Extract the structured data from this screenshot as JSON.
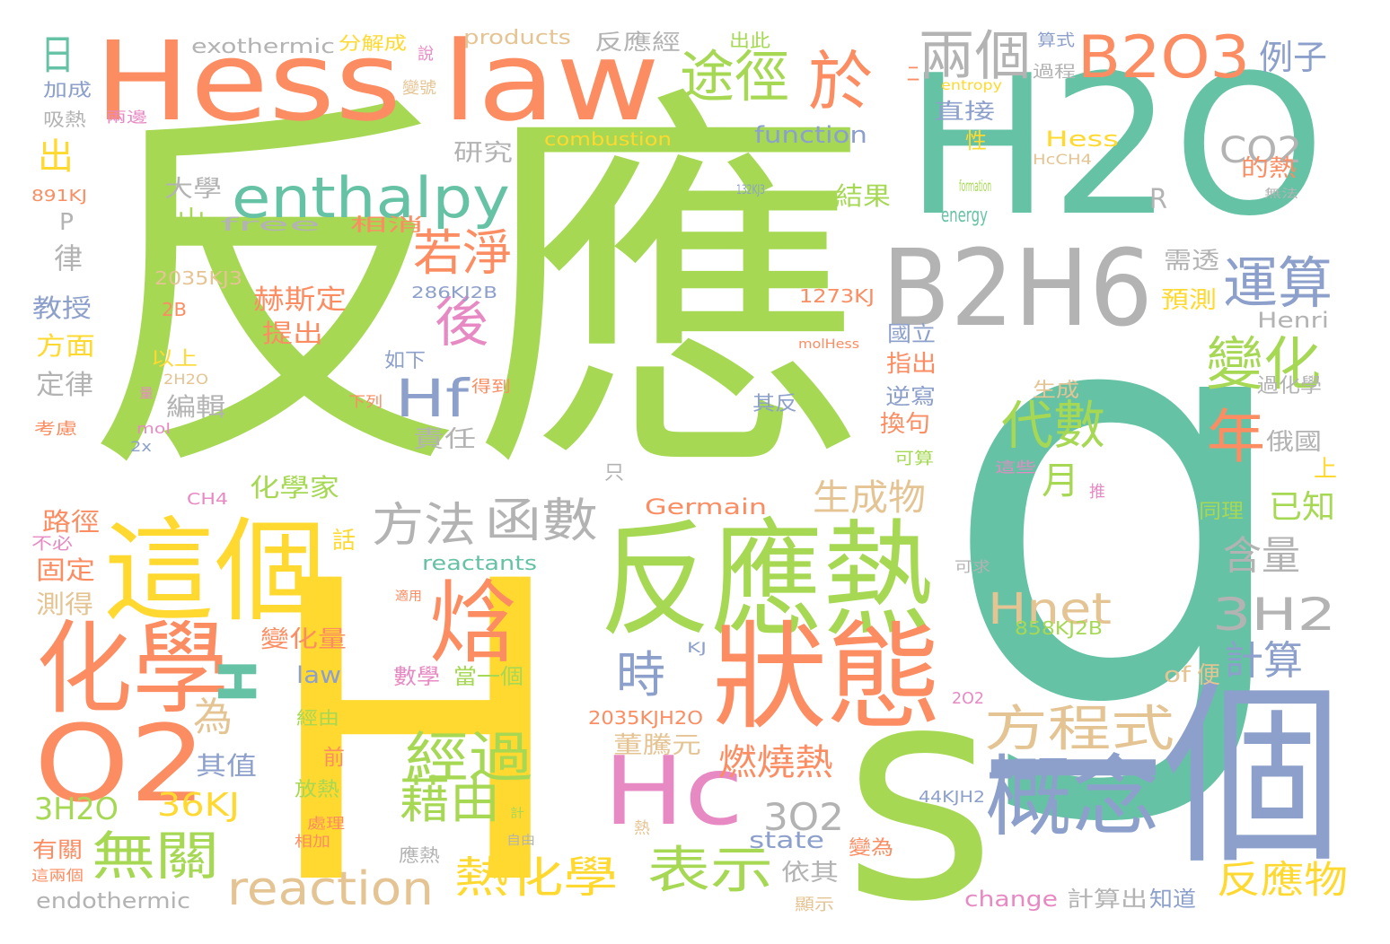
{
  "palette": {
    "green": "#a6d854",
    "teal": "#66c2a5",
    "orange": "#fc8d62",
    "yellow": "#ffd92f",
    "blue": "#8da0cb",
    "pink": "#e78ac3",
    "tan": "#e5c494",
    "gray": "#b3b3b3"
  },
  "words": [
    {
      "text": "反應",
      "color": "green"
    },
    {
      "text": "g",
      "color": "teal"
    },
    {
      "text": "H2O",
      "color": "teal"
    },
    {
      "text": "H",
      "color": "yellow"
    },
    {
      "text": "s",
      "color": "green"
    },
    {
      "text": "Hess law",
      "color": "orange"
    },
    {
      "text": "一個",
      "color": "blue"
    },
    {
      "text": "反應熱",
      "color": "green"
    },
    {
      "text": "狀態",
      "color": "orange"
    },
    {
      "text": "這個",
      "color": "yellow"
    },
    {
      "text": "化學",
      "color": "orange"
    },
    {
      "text": "O2",
      "color": "orange"
    },
    {
      "text": "B2H6",
      "color": "gray"
    },
    {
      "text": "Hc",
      "color": "pink"
    },
    {
      "text": "概念",
      "color": "blue"
    },
    {
      "text": "焓",
      "color": "orange"
    },
    {
      "text": "B2O3",
      "color": "orange"
    },
    {
      "text": "H",
      "color": "teal"
    },
    {
      "text": "enthalpy",
      "color": "teal"
    },
    {
      "text": "於",
      "color": "orange"
    },
    {
      "text": "兩個",
      "color": "gray"
    },
    {
      "text": "途徑",
      "color": "green"
    },
    {
      "text": "運算",
      "color": "blue"
    },
    {
      "text": "變化",
      "color": "green"
    },
    {
      "text": "年",
      "color": "orange"
    },
    {
      "text": "後",
      "color": "pink"
    },
    {
      "text": "Hf",
      "color": "blue"
    },
    {
      "text": "若淨",
      "color": "orange"
    },
    {
      "text": "代數",
      "color": "green"
    },
    {
      "text": "月",
      "color": "green"
    },
    {
      "text": "方法",
      "color": "gray"
    },
    {
      "text": "函數",
      "color": "gray"
    },
    {
      "text": "時",
      "color": "blue"
    },
    {
      "text": "為",
      "color": "tan"
    },
    {
      "text": "經過",
      "color": "green"
    },
    {
      "text": "方程式",
      "color": "tan"
    },
    {
      "text": "Hnet",
      "color": "tan"
    },
    {
      "text": "3H2",
      "color": "gray"
    },
    {
      "text": "含量",
      "color": "gray"
    },
    {
      "text": "計算",
      "color": "blue"
    },
    {
      "text": "藉由",
      "color": "green"
    },
    {
      "text": "表示",
      "color": "green"
    },
    {
      "text": "熱化學",
      "color": "yellow"
    },
    {
      "text": "無關",
      "color": "green"
    },
    {
      "text": "reaction",
      "color": "tan"
    },
    {
      "text": "反應物",
      "color": "yellow"
    },
    {
      "text": "生成物",
      "color": "tan"
    },
    {
      "text": "燃燒熱",
      "color": "orange"
    },
    {
      "text": "3O2",
      "color": "gray"
    },
    {
      "text": "36KJ",
      "color": "yellow"
    },
    {
      "text": "3H2O",
      "color": "green"
    },
    {
      "text": "CO2",
      "color": "gray"
    },
    {
      "text": "例子",
      "color": "blue"
    },
    {
      "text": "日",
      "color": "teal"
    },
    {
      "text": "出",
      "color": "yellow"
    },
    {
      "text": "已知",
      "color": "green"
    },
    {
      "text": "R",
      "color": "gray"
    },
    {
      "text": "P",
      "color": "gray"
    },
    {
      "text": "exothermic",
      "color": "gray"
    },
    {
      "text": "分解成",
      "color": "yellow"
    },
    {
      "text": "products",
      "color": "tan"
    },
    {
      "text": "反應經",
      "color": "gray"
    },
    {
      "text": "出此",
      "color": "green"
    },
    {
      "text": "算式",
      "color": "blue"
    },
    {
      "text": "加成",
      "color": "blue"
    },
    {
      "text": "說",
      "color": "pink"
    },
    {
      "text": "變號",
      "color": "tan"
    },
    {
      "text": "二",
      "color": "orange"
    },
    {
      "text": "過程",
      "color": "gray"
    },
    {
      "text": "entropy",
      "color": "yellow"
    },
    {
      "text": "吸熱",
      "color": "gray"
    },
    {
      "text": "兩邊",
      "color": "pink"
    },
    {
      "text": "直接",
      "color": "blue"
    },
    {
      "text": "性",
      "color": "yellow"
    },
    {
      "text": "combustion",
      "color": "yellow"
    },
    {
      "text": "function",
      "color": "blue"
    },
    {
      "text": "Hess",
      "color": "yellow"
    },
    {
      "text": "HcCH4",
      "color": "tan"
    },
    {
      "text": "研究",
      "color": "gray"
    },
    {
      "text": "大學",
      "color": "gray"
    },
    {
      "text": "891KJ",
      "color": "orange"
    },
    {
      "text": "的熱",
      "color": "orange"
    },
    {
      "text": "formation",
      "color": "green"
    },
    {
      "text": "132KJ3",
      "color": "blue"
    },
    {
      "text": "無法",
      "color": "gray"
    },
    {
      "text": "中山",
      "color": "green"
    },
    {
      "text": "free",
      "color": "gray"
    },
    {
      "text": "相消",
      "color": "orange"
    },
    {
      "text": "結果",
      "color": "green"
    },
    {
      "text": "energy",
      "color": "teal"
    },
    {
      "text": "律",
      "color": "gray"
    },
    {
      "text": "2035KJ3",
      "color": "tan"
    },
    {
      "text": "286KJ2B",
      "color": "blue"
    },
    {
      "text": "1273KJ",
      "color": "orange"
    },
    {
      "text": "需透",
      "color": "gray"
    },
    {
      "text": "預測",
      "color": "yellow"
    },
    {
      "text": "Henri",
      "color": "gray"
    },
    {
      "text": "教授",
      "color": "blue"
    },
    {
      "text": "赫斯定",
      "color": "orange"
    },
    {
      "text": "提出",
      "color": "orange"
    },
    {
      "text": "2B",
      "color": "orange"
    },
    {
      "text": "方面",
      "color": "yellow"
    },
    {
      "text": "以上",
      "color": "yellow"
    },
    {
      "text": "molHess",
      "color": "orange"
    },
    {
      "text": "國立",
      "color": "blue"
    },
    {
      "text": "指出",
      "color": "orange"
    },
    {
      "text": "如下",
      "color": "blue"
    },
    {
      "text": "2H2O",
      "color": "tan"
    },
    {
      "text": "定律",
      "color": "gray"
    },
    {
      "text": "量",
      "color": "pink"
    },
    {
      "text": "編輯",
      "color": "gray"
    },
    {
      "text": "下列",
      "color": "orange"
    },
    {
      "text": "得到",
      "color": "orange"
    },
    {
      "text": "生成",
      "color": "tan"
    },
    {
      "text": "過化學",
      "color": "gray"
    },
    {
      "text": "逆寫",
      "color": "blue"
    },
    {
      "text": "其反",
      "color": "blue"
    },
    {
      "text": "考慮",
      "color": "orange"
    },
    {
      "text": "mol",
      "color": "pink"
    },
    {
      "text": "2x",
      "color": "blue"
    },
    {
      "text": "責任",
      "color": "gray"
    },
    {
      "text": "換句",
      "color": "orange"
    },
    {
      "text": "俄國",
      "color": "gray"
    },
    {
      "text": "可算",
      "color": "green"
    },
    {
      "text": "這些",
      "color": "pink"
    },
    {
      "text": "上",
      "color": "yellow"
    },
    {
      "text": "只",
      "color": "gray"
    },
    {
      "text": "化學家",
      "color": "green"
    },
    {
      "text": "推",
      "color": "pink"
    },
    {
      "text": "CH4",
      "color": "pink"
    },
    {
      "text": "Germain",
      "color": "orange"
    },
    {
      "text": "同理",
      "color": "green"
    },
    {
      "text": "路徑",
      "color": "orange"
    },
    {
      "text": "不必",
      "color": "pink"
    },
    {
      "text": "話",
      "color": "yellow"
    },
    {
      "text": "reactants",
      "color": "teal"
    },
    {
      "text": "固定",
      "color": "orange"
    },
    {
      "text": "可求",
      "color": "gray"
    },
    {
      "text": "測得",
      "color": "tan"
    },
    {
      "text": "適用",
      "color": "orange"
    },
    {
      "text": "858KJ2B",
      "color": "green"
    },
    {
      "text": "KJ",
      "color": "blue"
    },
    {
      "text": "變化量",
      "color": "orange"
    },
    {
      "text": "law",
      "color": "blue"
    },
    {
      "text": "數學",
      "color": "pink"
    },
    {
      "text": "當一個",
      "color": "green"
    },
    {
      "text": "of",
      "color": "tan"
    },
    {
      "text": "便",
      "color": "tan"
    },
    {
      "text": "2035KJH2O",
      "color": "orange"
    },
    {
      "text": "2O2",
      "color": "pink"
    },
    {
      "text": "經由",
      "color": "green"
    },
    {
      "text": "董騰元",
      "color": "tan"
    },
    {
      "text": "其值",
      "color": "blue"
    },
    {
      "text": "前",
      "color": "orange"
    },
    {
      "text": "放熱",
      "color": "green"
    },
    {
      "text": "44KJH2",
      "color": "blue"
    },
    {
      "text": "計",
      "color": "green"
    },
    {
      "text": "處理",
      "color": "orange"
    },
    {
      "text": "自由",
      "color": "gray"
    },
    {
      "text": "熱",
      "color": "tan"
    },
    {
      "text": "state",
      "color": "blue"
    },
    {
      "text": "相加",
      "color": "orange"
    },
    {
      "text": "有關",
      "color": "orange"
    },
    {
      "text": "應熱",
      "color": "gray"
    },
    {
      "text": "變為",
      "color": "orange"
    },
    {
      "text": "這兩個",
      "color": "orange"
    },
    {
      "text": "依其",
      "color": "gray"
    },
    {
      "text": "endothermic",
      "color": "gray"
    },
    {
      "text": "change",
      "color": "pink"
    },
    {
      "text": "計算出",
      "color": "gray"
    },
    {
      "text": "知道",
      "color": "blue"
    },
    {
      "text": "顯示",
      "color": "tan"
    }
  ]
}
